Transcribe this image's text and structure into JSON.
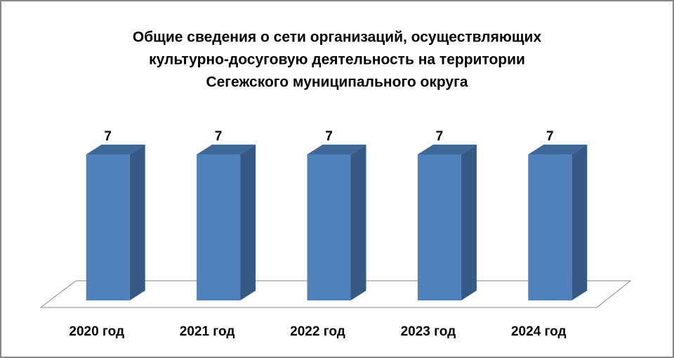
{
  "chart_data": {
    "type": "bar3d",
    "title": [
      "Общие сведения о сети организаций, осуществляющих",
      "культурно-досуговую деятельность на территории",
      "Сегежского муниципального округа"
    ],
    "categories": [
      "2020 год",
      "2021 год",
      "2022 год",
      "2023 год",
      "2024 год"
    ],
    "values": [
      7,
      7,
      7,
      7,
      7
    ],
    "color": "#4f81bd"
  }
}
